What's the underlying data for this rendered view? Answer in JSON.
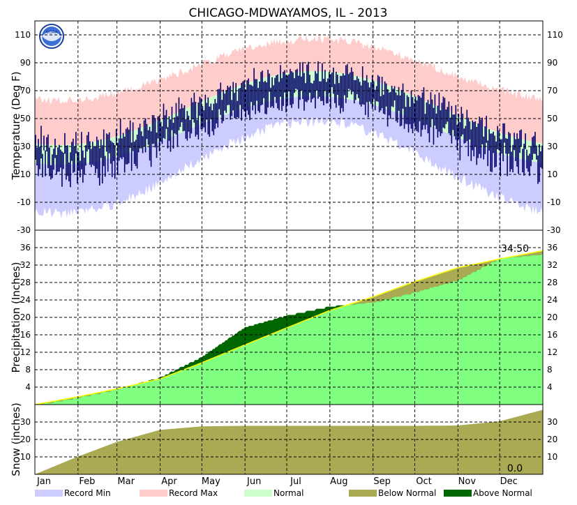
{
  "chart_data": [
    {
      "type": "area",
      "panel": "temperature",
      "title": "CHICAGO-MDWAYAMOS, IL - 2013",
      "ylabel": "Temperature (Deg F)",
      "ylim": [
        -30,
        120
      ],
      "yticks": [
        -30,
        -10,
        10,
        30,
        50,
        70,
        90,
        110
      ],
      "xlabels": [
        "Jan",
        "Feb",
        "Mar",
        "Apr",
        "May",
        "Jun",
        "Jul",
        "Aug",
        "Sep",
        "Oct",
        "Nov",
        "Dec"
      ],
      "normal_high_range": [
        31,
        84
      ],
      "normal_low_range": [
        17,
        66
      ],
      "record_max_range": [
        60,
        104
      ],
      "record_min_range": [
        -14,
        52
      ],
      "observed_daily_range_note": "daily observed high/low bars, approx -8 to 98",
      "colors": {
        "record_min": "#ccccff",
        "record_max": "#ffcccc",
        "normal": "#ccffcc",
        "observed": "#000066"
      }
    },
    {
      "type": "area",
      "panel": "precipitation",
      "ylabel": "Precipitation (Inches)",
      "ylim": [
        0,
        40
      ],
      "yticks": [
        4,
        8,
        12,
        16,
        20,
        24,
        28,
        32,
        36
      ],
      "annotation": "34.50",
      "month_end_normal": [
        0,
        1.8,
        3.6,
        5.9,
        9.6,
        13.7,
        17.6,
        21.6,
        24.7,
        28.2,
        31.4,
        33.4,
        35.3
      ],
      "month_end_observed": [
        0,
        1.7,
        3.6,
        6.3,
        11.0,
        17.8,
        20.5,
        22.6,
        23.5,
        25.8,
        28.6,
        33.6,
        34.5
      ],
      "colors": {
        "observed": "#80ff80",
        "normal_line": "#ffff00",
        "below_normal": "#aaaa55",
        "above_normal": "#006600"
      }
    },
    {
      "type": "area",
      "panel": "snow",
      "ylabel": "Snow (inches)",
      "ylim": [
        0,
        40
      ],
      "yticks": [
        10,
        20,
        30
      ],
      "annotation": "0.0",
      "month_end_normal_snow": [
        0,
        10.2,
        18.6,
        25.5,
        27.5,
        27.8,
        27.8,
        27.8,
        27.8,
        27.8,
        28.0,
        30.4,
        37.0
      ],
      "colors": {
        "normal_snow": "#aaaa55"
      }
    }
  ],
  "legend": [
    {
      "label": "Record Min",
      "color": "#ccccff"
    },
    {
      "label": "Record Max",
      "color": "#ffcccc"
    },
    {
      "label": "Normal",
      "color": "#ccffcc"
    },
    {
      "label": "Below Normal",
      "color": "#aaaa55"
    },
    {
      "label": "Above Normal",
      "color": "#006600"
    }
  ],
  "logo": {
    "text": "NOAA"
  }
}
